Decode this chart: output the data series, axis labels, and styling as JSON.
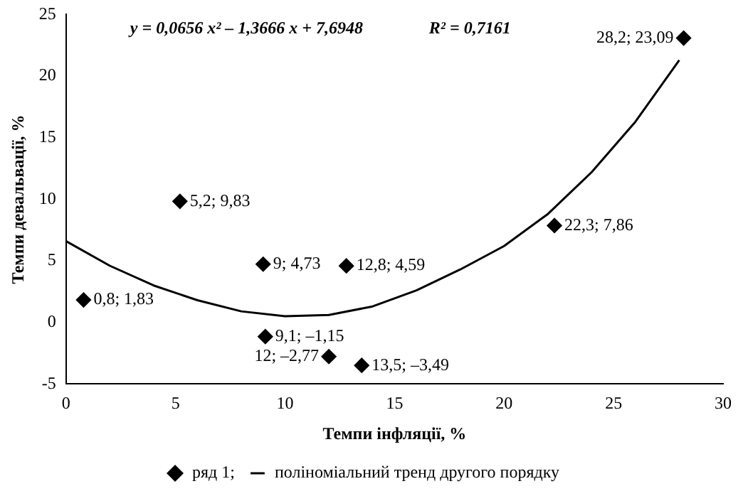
{
  "chart_data": {
    "type": "scatter",
    "xlabel": "Темпи інфляції, %",
    "ylabel": "Темпи девальвації, %",
    "annotations": [
      "y = 0,0656 x² – 1,3666 x + 7,6948",
      "R² = 0,7161"
    ],
    "xlim": [
      0,
      30
    ],
    "xticks": [
      0,
      5,
      10,
      15,
      20,
      25,
      30
    ],
    "ylim": [
      -5,
      25
    ],
    "yticks": [
      -5,
      0,
      5,
      10,
      15,
      20,
      25
    ],
    "grid": false,
    "legend": "bottom",
    "marker": "diamond",
    "series": [
      {
        "name": "ряд 1;",
        "color": "#000000",
        "x": [
          0.8,
          5.2,
          9,
          12.8,
          22.3,
          28.2,
          9.1,
          12,
          13.5
        ],
        "values": [
          1.83,
          9.83,
          4.73,
          4.59,
          7.86,
          23.09,
          -1.15,
          -2.77,
          -3.49
        ],
        "value_labels": [
          "0,8; 1,83",
          "5,2; 9,83",
          "9; 4,73",
          "12,8; 4,59",
          "22,3; 7,86",
          "28,2; 23,09",
          "9,1; –1,15",
          "12; –2,77",
          "13,5; –3,49"
        ]
      },
      {
        "name": "поліноміальний тренд другого порядку",
        "type": "line",
        "marker": "none",
        "line_style": "solid",
        "color": "#000000",
        "x": [
          0,
          2,
          4,
          6,
          8,
          10,
          12,
          14,
          16,
          18,
          20,
          22,
          24,
          26,
          28
        ],
        "values": [
          6.6,
          4.6,
          3.0,
          1.8,
          0.9,
          0.5,
          0.6,
          1.3,
          2.6,
          4.3,
          6.2,
          8.8,
          12.2,
          16.3,
          21.3
        ]
      }
    ]
  }
}
